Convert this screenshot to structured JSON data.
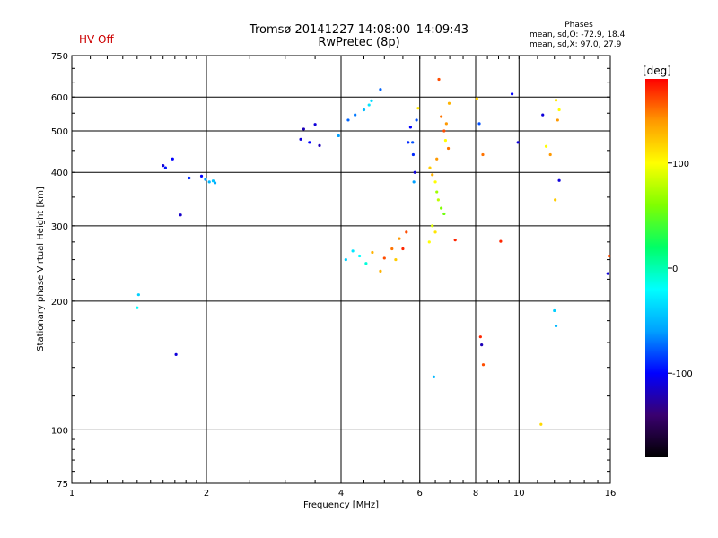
{
  "status": {
    "hv": "HV Off"
  },
  "header": {
    "title_line1": "Tromsø 20141227 14:08:00–14:09:43",
    "title_line2": "RwPretec (8p)"
  },
  "phases_box": {
    "heading": "Phases",
    "line_o": "mean, sd,O: -72.9, 18.4",
    "line_x": "mean, sd,X:  97.0, 27.9"
  },
  "colors": {
    "background": "#ffffff",
    "gridline": "#000000",
    "hv_text": "#cc0000"
  },
  "chart_data": {
    "type": "scatter",
    "title": "Tromsø 20141227 14:08:00–14:09:43",
    "subtitle": "RwPretec (8p)",
    "xlabel": "Frequency [MHz]",
    "ylabel": "Stationary phase Virtual Height [km]",
    "xscale": "log",
    "yscale": "log",
    "xlim": [
      1,
      16
    ],
    "ylim": [
      75,
      750
    ],
    "xticks": [
      1,
      2,
      4,
      6,
      8,
      10,
      16
    ],
    "yticks": [
      75,
      100,
      200,
      300,
      400,
      500,
      600,
      750
    ],
    "grid_x": [
      2,
      4,
      6,
      8,
      10
    ],
    "grid_y": [
      100,
      200,
      300,
      400,
      500,
      600
    ],
    "grid": true,
    "colorbar": {
      "label": "[deg]",
      "range": [
        -180,
        180
      ],
      "ticks": [
        100,
        0,
        -100
      ],
      "colors": [
        "#000000",
        "#3a0070",
        "#0000ff",
        "#00a0ff",
        "#00ffff",
        "#00ff66",
        "#80ff00",
        "#ffff00",
        "#ff9900",
        "#ff0000"
      ]
    },
    "series": [
      {
        "points": [
          [
            1.6,
            415,
            -110
          ],
          [
            1.68,
            430,
            -100
          ],
          [
            1.62,
            410,
            -95
          ],
          [
            1.75,
            318,
            -115
          ],
          [
            1.83,
            388,
            -90
          ],
          [
            1.95,
            392,
            -100
          ],
          [
            1.99,
            385,
            -60
          ],
          [
            2.03,
            380,
            -50
          ],
          [
            2.07,
            382,
            -45
          ],
          [
            2.09,
            378,
            -55
          ],
          [
            1.41,
            207,
            -40
          ],
          [
            1.4,
            193,
            -20
          ],
          [
            1.71,
            150,
            -110
          ],
          [
            3.25,
            478,
            -110
          ],
          [
            3.3,
            505,
            -120
          ],
          [
            3.4,
            470,
            -100
          ],
          [
            3.5,
            518,
            -110
          ],
          [
            3.58,
            462,
            -120
          ],
          [
            3.95,
            487,
            -60
          ],
          [
            4.15,
            530,
            -75
          ],
          [
            4.3,
            545,
            -70
          ],
          [
            4.5,
            560,
            -50
          ],
          [
            4.62,
            575,
            -30
          ],
          [
            4.68,
            588,
            -35
          ],
          [
            4.9,
            625,
            -75
          ],
          [
            5.65,
            470,
            -90
          ],
          [
            5.72,
            510,
            -100
          ],
          [
            5.78,
            470,
            -80
          ],
          [
            5.8,
            440,
            -90
          ],
          [
            5.85,
            400,
            -110
          ],
          [
            5.82,
            380,
            -60
          ],
          [
            5.9,
            530,
            -80
          ],
          [
            5.95,
            565,
            110
          ],
          [
            6.32,
            410,
            120
          ],
          [
            6.4,
            395,
            130
          ],
          [
            6.5,
            380,
            100
          ],
          [
            6.55,
            360,
            70
          ],
          [
            6.6,
            345,
            80
          ],
          [
            6.7,
            330,
            60
          ],
          [
            6.8,
            320,
            55
          ],
          [
            6.55,
            430,
            140
          ],
          [
            6.7,
            540,
            150
          ],
          [
            6.8,
            500,
            160
          ],
          [
            6.88,
            520,
            140
          ],
          [
            6.95,
            455,
            150
          ],
          [
            6.98,
            580,
            130
          ],
          [
            6.62,
            660,
            160
          ],
          [
            6.85,
            475,
            100
          ],
          [
            8.05,
            595,
            120
          ],
          [
            8.15,
            520,
            -80
          ],
          [
            8.3,
            440,
            150
          ],
          [
            8.2,
            165,
            170
          ],
          [
            8.25,
            158,
            -120
          ],
          [
            8.32,
            142,
            160
          ],
          [
            9.1,
            276,
            170
          ],
          [
            9.65,
            610,
            -100
          ],
          [
            9.95,
            470,
            -110
          ],
          [
            11.3,
            545,
            -110
          ],
          [
            11.5,
            460,
            100
          ],
          [
            11.75,
            440,
            140
          ],
          [
            12.1,
            590,
            110
          ],
          [
            12.3,
            560,
            100
          ],
          [
            12.2,
            530,
            140
          ],
          [
            12.05,
            345,
            120
          ],
          [
            12.3,
            383,
            -110
          ],
          [
            12.0,
            190,
            -40
          ],
          [
            12.1,
            175,
            -50
          ],
          [
            11.2,
            103,
            115
          ],
          [
            15.8,
            232,
            -110
          ],
          [
            15.9,
            255,
            160
          ],
          [
            7.2,
            278,
            170
          ],
          [
            6.45,
            133,
            -50
          ],
          [
            4.9,
            235,
            130
          ],
          [
            5.2,
            265,
            150
          ],
          [
            5.4,
            280,
            140
          ],
          [
            5.6,
            290,
            160
          ],
          [
            5.5,
            265,
            170
          ],
          [
            5.3,
            250,
            120
          ],
          [
            5.0,
            252,
            160
          ],
          [
            4.7,
            260,
            130
          ],
          [
            4.55,
            245,
            -10
          ],
          [
            4.4,
            255,
            -20
          ],
          [
            4.25,
            262,
            -30
          ],
          [
            4.1,
            250,
            -40
          ],
          [
            6.4,
            300,
            90
          ],
          [
            6.5,
            290,
            110
          ],
          [
            6.3,
            275,
            100
          ]
        ]
      }
    ]
  }
}
